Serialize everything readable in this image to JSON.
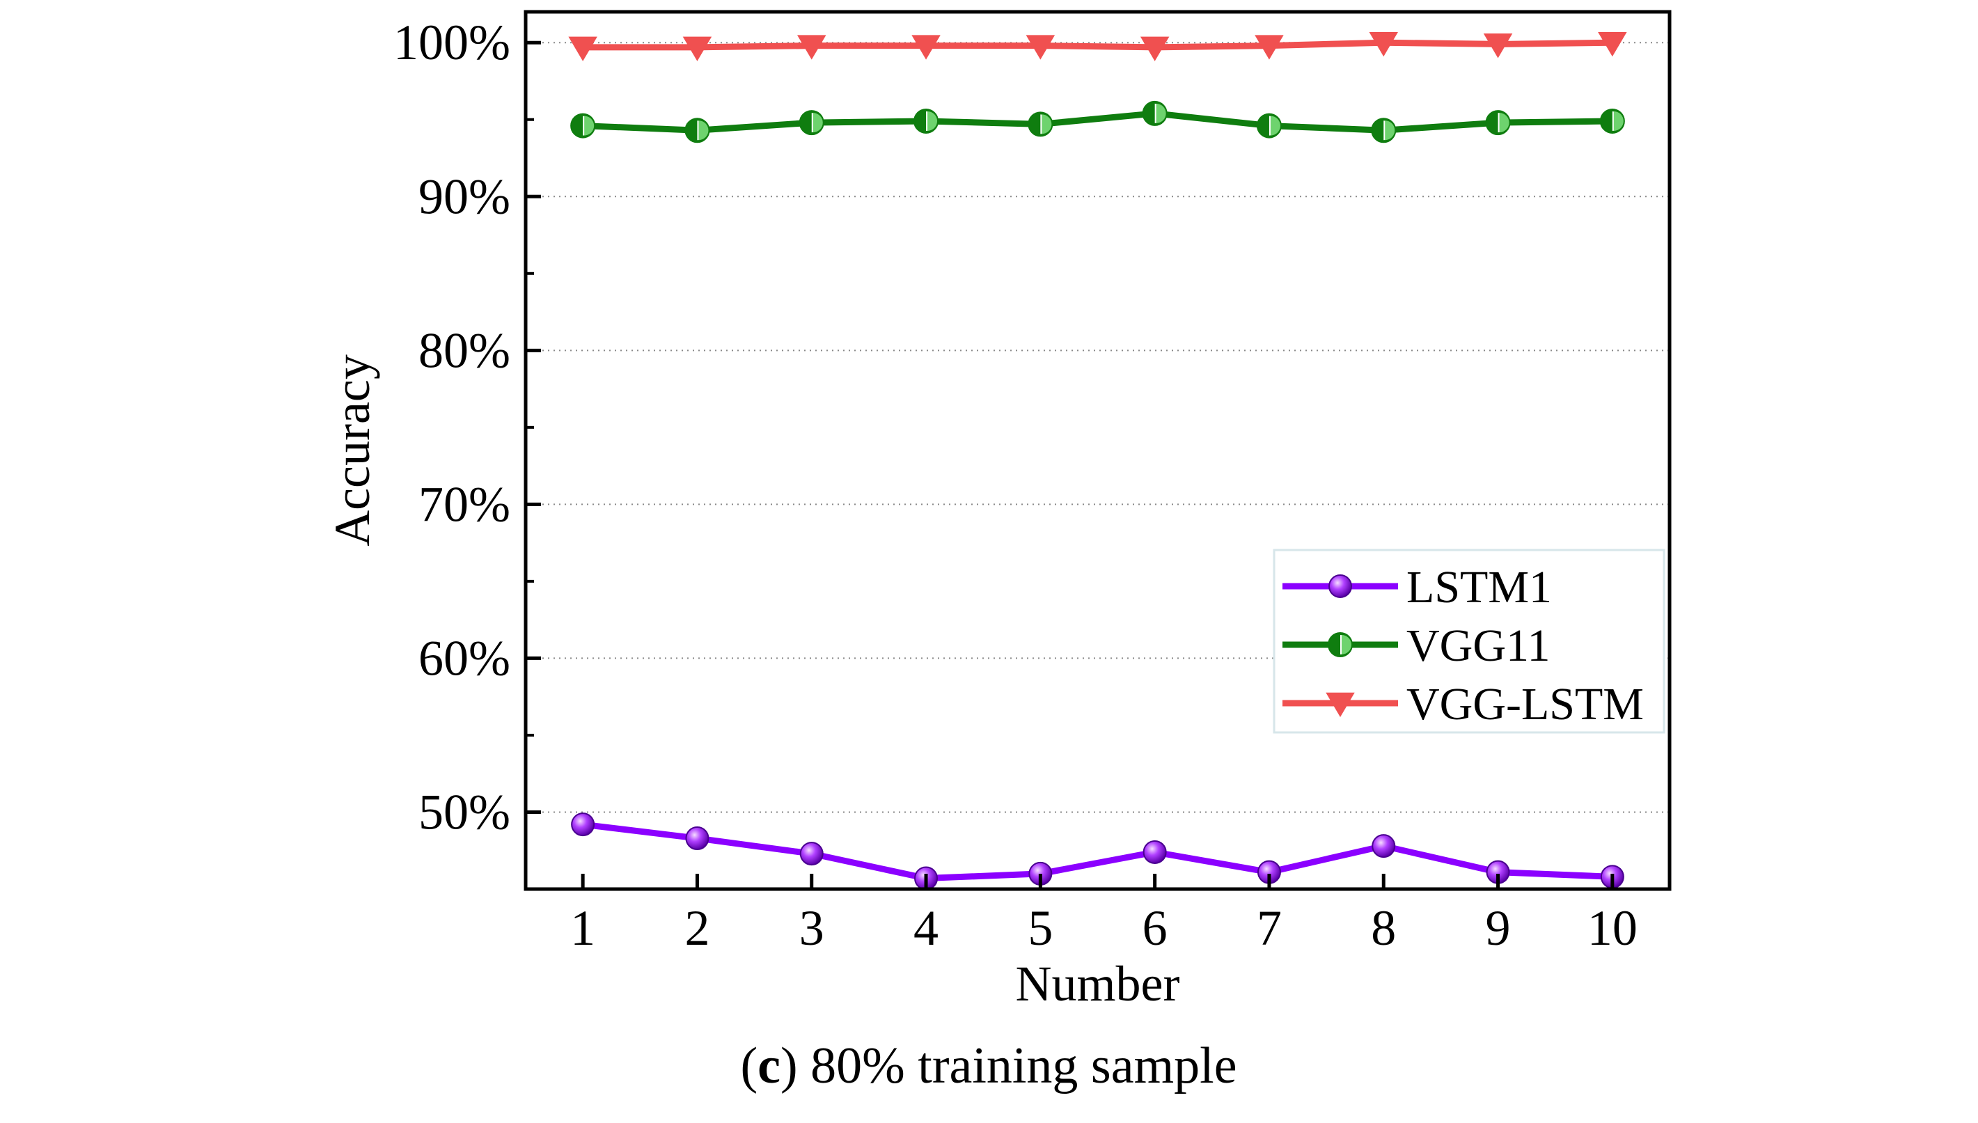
{
  "chart_data": {
    "type": "line",
    "title": "",
    "caption": {
      "label": "c",
      "text": " 80% training sample"
    },
    "xlabel": "Number",
    "ylabel": "Accuracy",
    "x": [
      1,
      2,
      3,
      4,
      5,
      6,
      7,
      8,
      9,
      10
    ],
    "x_tick_labels": [
      "1",
      "2",
      "3",
      "4",
      "5",
      "6",
      "7",
      "8",
      "9",
      "10"
    ],
    "xlim": [
      0.5,
      10.5
    ],
    "ylim": [
      45,
      102
    ],
    "y_ticks": [
      50,
      60,
      70,
      80,
      90,
      100
    ],
    "y_tick_labels": [
      "50%",
      "60%",
      "70%",
      "80%",
      "90%",
      "100%"
    ],
    "grid": true,
    "legend_position": "lower-right",
    "series": [
      {
        "name": "LSTM1",
        "color": "#8b00ff",
        "marker": "sphere",
        "values": [
          49.2,
          48.3,
          47.3,
          45.7,
          46.0,
          47.4,
          46.1,
          47.8,
          46.1,
          45.8
        ]
      },
      {
        "name": "VGG11",
        "color": "#0f7d0f",
        "marker": "half-filled-circle",
        "values": [
          94.6,
          94.3,
          94.8,
          94.9,
          94.7,
          95.4,
          94.6,
          94.3,
          94.8,
          94.9
        ]
      },
      {
        "name": "VGG-LSTM",
        "color": "#f05050",
        "marker": "down-triangle",
        "values": [
          99.7,
          99.7,
          99.8,
          99.8,
          99.8,
          99.7,
          99.8,
          100.0,
          99.9,
          100.0
        ]
      }
    ]
  }
}
